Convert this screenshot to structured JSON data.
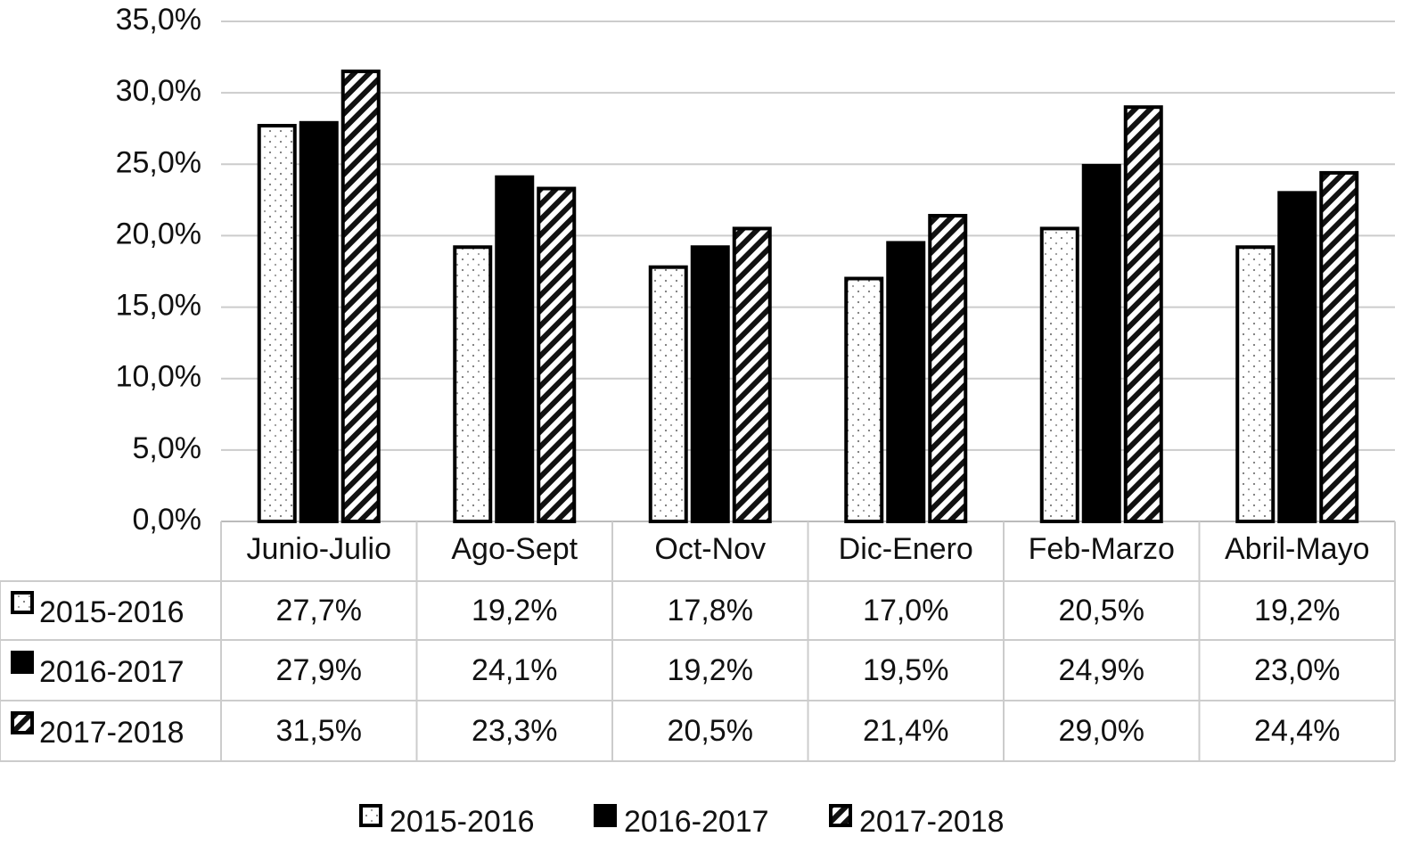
{
  "chart_data": {
    "type": "bar",
    "categories": [
      "Junio-Julio",
      "Ago-Sept",
      "Oct-Nov",
      "Dic-Enero",
      "Feb-Marzo",
      "Abril-Mayo"
    ],
    "series": [
      {
        "name": "2015-2016",
        "color": "#ffffff",
        "pattern": "dots",
        "values": [
          27.7,
          19.2,
          17.8,
          17.0,
          20.5,
          19.2
        ],
        "value_labels": [
          "27,7%",
          "19,2%",
          "17,8%",
          "17,0%",
          "20,5%",
          "19,2%"
        ]
      },
      {
        "name": "2016-2017",
        "color": "#000000",
        "pattern": "solid",
        "values": [
          27.9,
          24.1,
          19.2,
          19.5,
          24.9,
          23.0
        ],
        "value_labels": [
          "27,9%",
          "24,1%",
          "19,2%",
          "19,5%",
          "24,9%",
          "23,0%"
        ]
      },
      {
        "name": "2017-2018",
        "color": "#ffffff",
        "pattern": "hatch",
        "values": [
          31.5,
          23.3,
          20.5,
          21.4,
          29.0,
          24.4
        ],
        "value_labels": [
          "31,5%",
          "23,3%",
          "20,5%",
          "21,4%",
          "29,0%",
          "24,4%"
        ]
      }
    ],
    "ylim": [
      0,
      35
    ],
    "yticks": [
      {
        "value": 0,
        "label": "0,0%"
      },
      {
        "value": 5,
        "label": "5,0%"
      },
      {
        "value": 10,
        "label": "10,0%"
      },
      {
        "value": 15,
        "label": "15,0%"
      },
      {
        "value": 20,
        "label": "20,0%"
      },
      {
        "value": 25,
        "label": "25,0%"
      },
      {
        "value": 30,
        "label": "30,0%"
      },
      {
        "value": 35,
        "label": "35,0%"
      }
    ],
    "grid": true,
    "legend": "bottom"
  }
}
